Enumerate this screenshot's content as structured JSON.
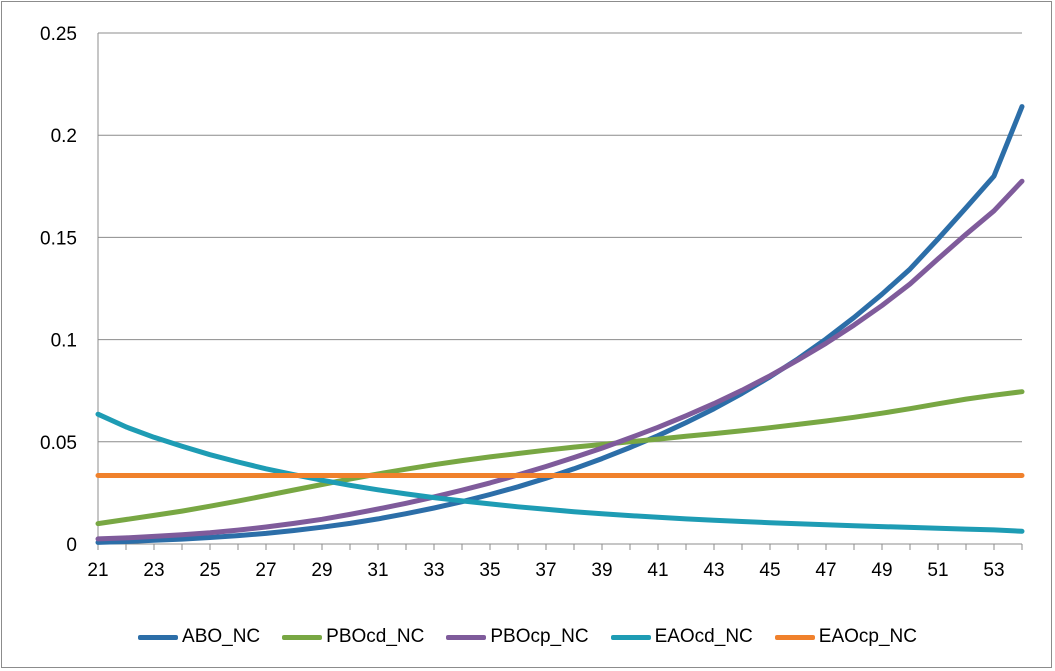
{
  "chart_data": {
    "type": "line",
    "title": "",
    "xlabel": "",
    "ylabel": "",
    "x": [
      21,
      22,
      23,
      24,
      25,
      26,
      27,
      28,
      29,
      30,
      31,
      32,
      33,
      34,
      35,
      36,
      37,
      38,
      39,
      40,
      41,
      42,
      43,
      44,
      45,
      46,
      47,
      48,
      49,
      50,
      51,
      52,
      53,
      54
    ],
    "x_ticks": [
      21,
      23,
      25,
      27,
      29,
      31,
      33,
      35,
      37,
      39,
      41,
      43,
      45,
      47,
      49,
      51,
      53
    ],
    "ylim": [
      0,
      0.25
    ],
    "y_ticks": [
      "0",
      "0.05",
      "0.1",
      "0.15",
      "0.2",
      "0.25"
    ],
    "grid": "horizontal",
    "legend": "bottom",
    "series": [
      {
        "name": "ABO_NC",
        "color": "#2c6ea8",
        "values": [
          0.0008,
          0.0012,
          0.0018,
          0.0024,
          0.0032,
          0.0041,
          0.0052,
          0.0066,
          0.0082,
          0.0101,
          0.0123,
          0.0148,
          0.0176,
          0.0207,
          0.0242,
          0.028,
          0.0322,
          0.0368,
          0.0418,
          0.0472,
          0.053,
          0.0594,
          0.0662,
          0.0737,
          0.0818,
          0.0906,
          0.1003,
          0.1108,
          0.1222,
          0.1345,
          0.1492,
          0.1645,
          0.18,
          0.214
        ]
      },
      {
        "name": "PBOcd_NC",
        "color": "#78a743",
        "values": [
          0.01,
          0.012,
          0.014,
          0.0161,
          0.0185,
          0.021,
          0.0237,
          0.0264,
          0.0291,
          0.0318,
          0.0343,
          0.0366,
          0.0388,
          0.0408,
          0.0426,
          0.0443,
          0.0459,
          0.0474,
          0.0487,
          0.05,
          0.0513,
          0.0527,
          0.054,
          0.0554,
          0.0569,
          0.0585,
          0.0602,
          0.062,
          0.064,
          0.0662,
          0.0686,
          0.0709,
          0.0728,
          0.0745
        ]
      },
      {
        "name": "PBOcp_NC",
        "color": "#7f5b9b",
        "values": [
          0.0025,
          0.003,
          0.0037,
          0.0045,
          0.0055,
          0.0068,
          0.0083,
          0.0101,
          0.0121,
          0.0145,
          0.0171,
          0.0199,
          0.023,
          0.0263,
          0.0299,
          0.0338,
          0.0379,
          0.0423,
          0.0469,
          0.0519,
          0.0571,
          0.0627,
          0.0687,
          0.0752,
          0.0823,
          0.09,
          0.0982,
          0.1071,
          0.1167,
          0.1272,
          0.1395,
          0.1515,
          0.163,
          0.1775
        ]
      },
      {
        "name": "EAOcd_NC",
        "color": "#1e9cb4",
        "values": [
          0.0635,
          0.0573,
          0.0522,
          0.0478,
          0.0437,
          0.0401,
          0.0368,
          0.0339,
          0.0312,
          0.0287,
          0.0265,
          0.0245,
          0.0227,
          0.0211,
          0.0196,
          0.0182,
          0.017,
          0.0158,
          0.0148,
          0.0139,
          0.0131,
          0.0123,
          0.0116,
          0.011,
          0.0104,
          0.0099,
          0.0094,
          0.0089,
          0.0085,
          0.0081,
          0.0077,
          0.0073,
          0.0069,
          0.0062
        ]
      },
      {
        "name": "EAOcp_NC",
        "color": "#f0812c",
        "values": [
          0.0335,
          0.0335,
          0.0335,
          0.0335,
          0.0335,
          0.0335,
          0.0335,
          0.0335,
          0.0335,
          0.0335,
          0.0335,
          0.0335,
          0.0335,
          0.0335,
          0.0335,
          0.0335,
          0.0335,
          0.0335,
          0.0335,
          0.0335,
          0.0335,
          0.0335,
          0.0335,
          0.0335,
          0.0335,
          0.0335,
          0.0335,
          0.0335,
          0.0335,
          0.0335,
          0.0335,
          0.0335,
          0.0335,
          0.0335
        ]
      }
    ]
  }
}
